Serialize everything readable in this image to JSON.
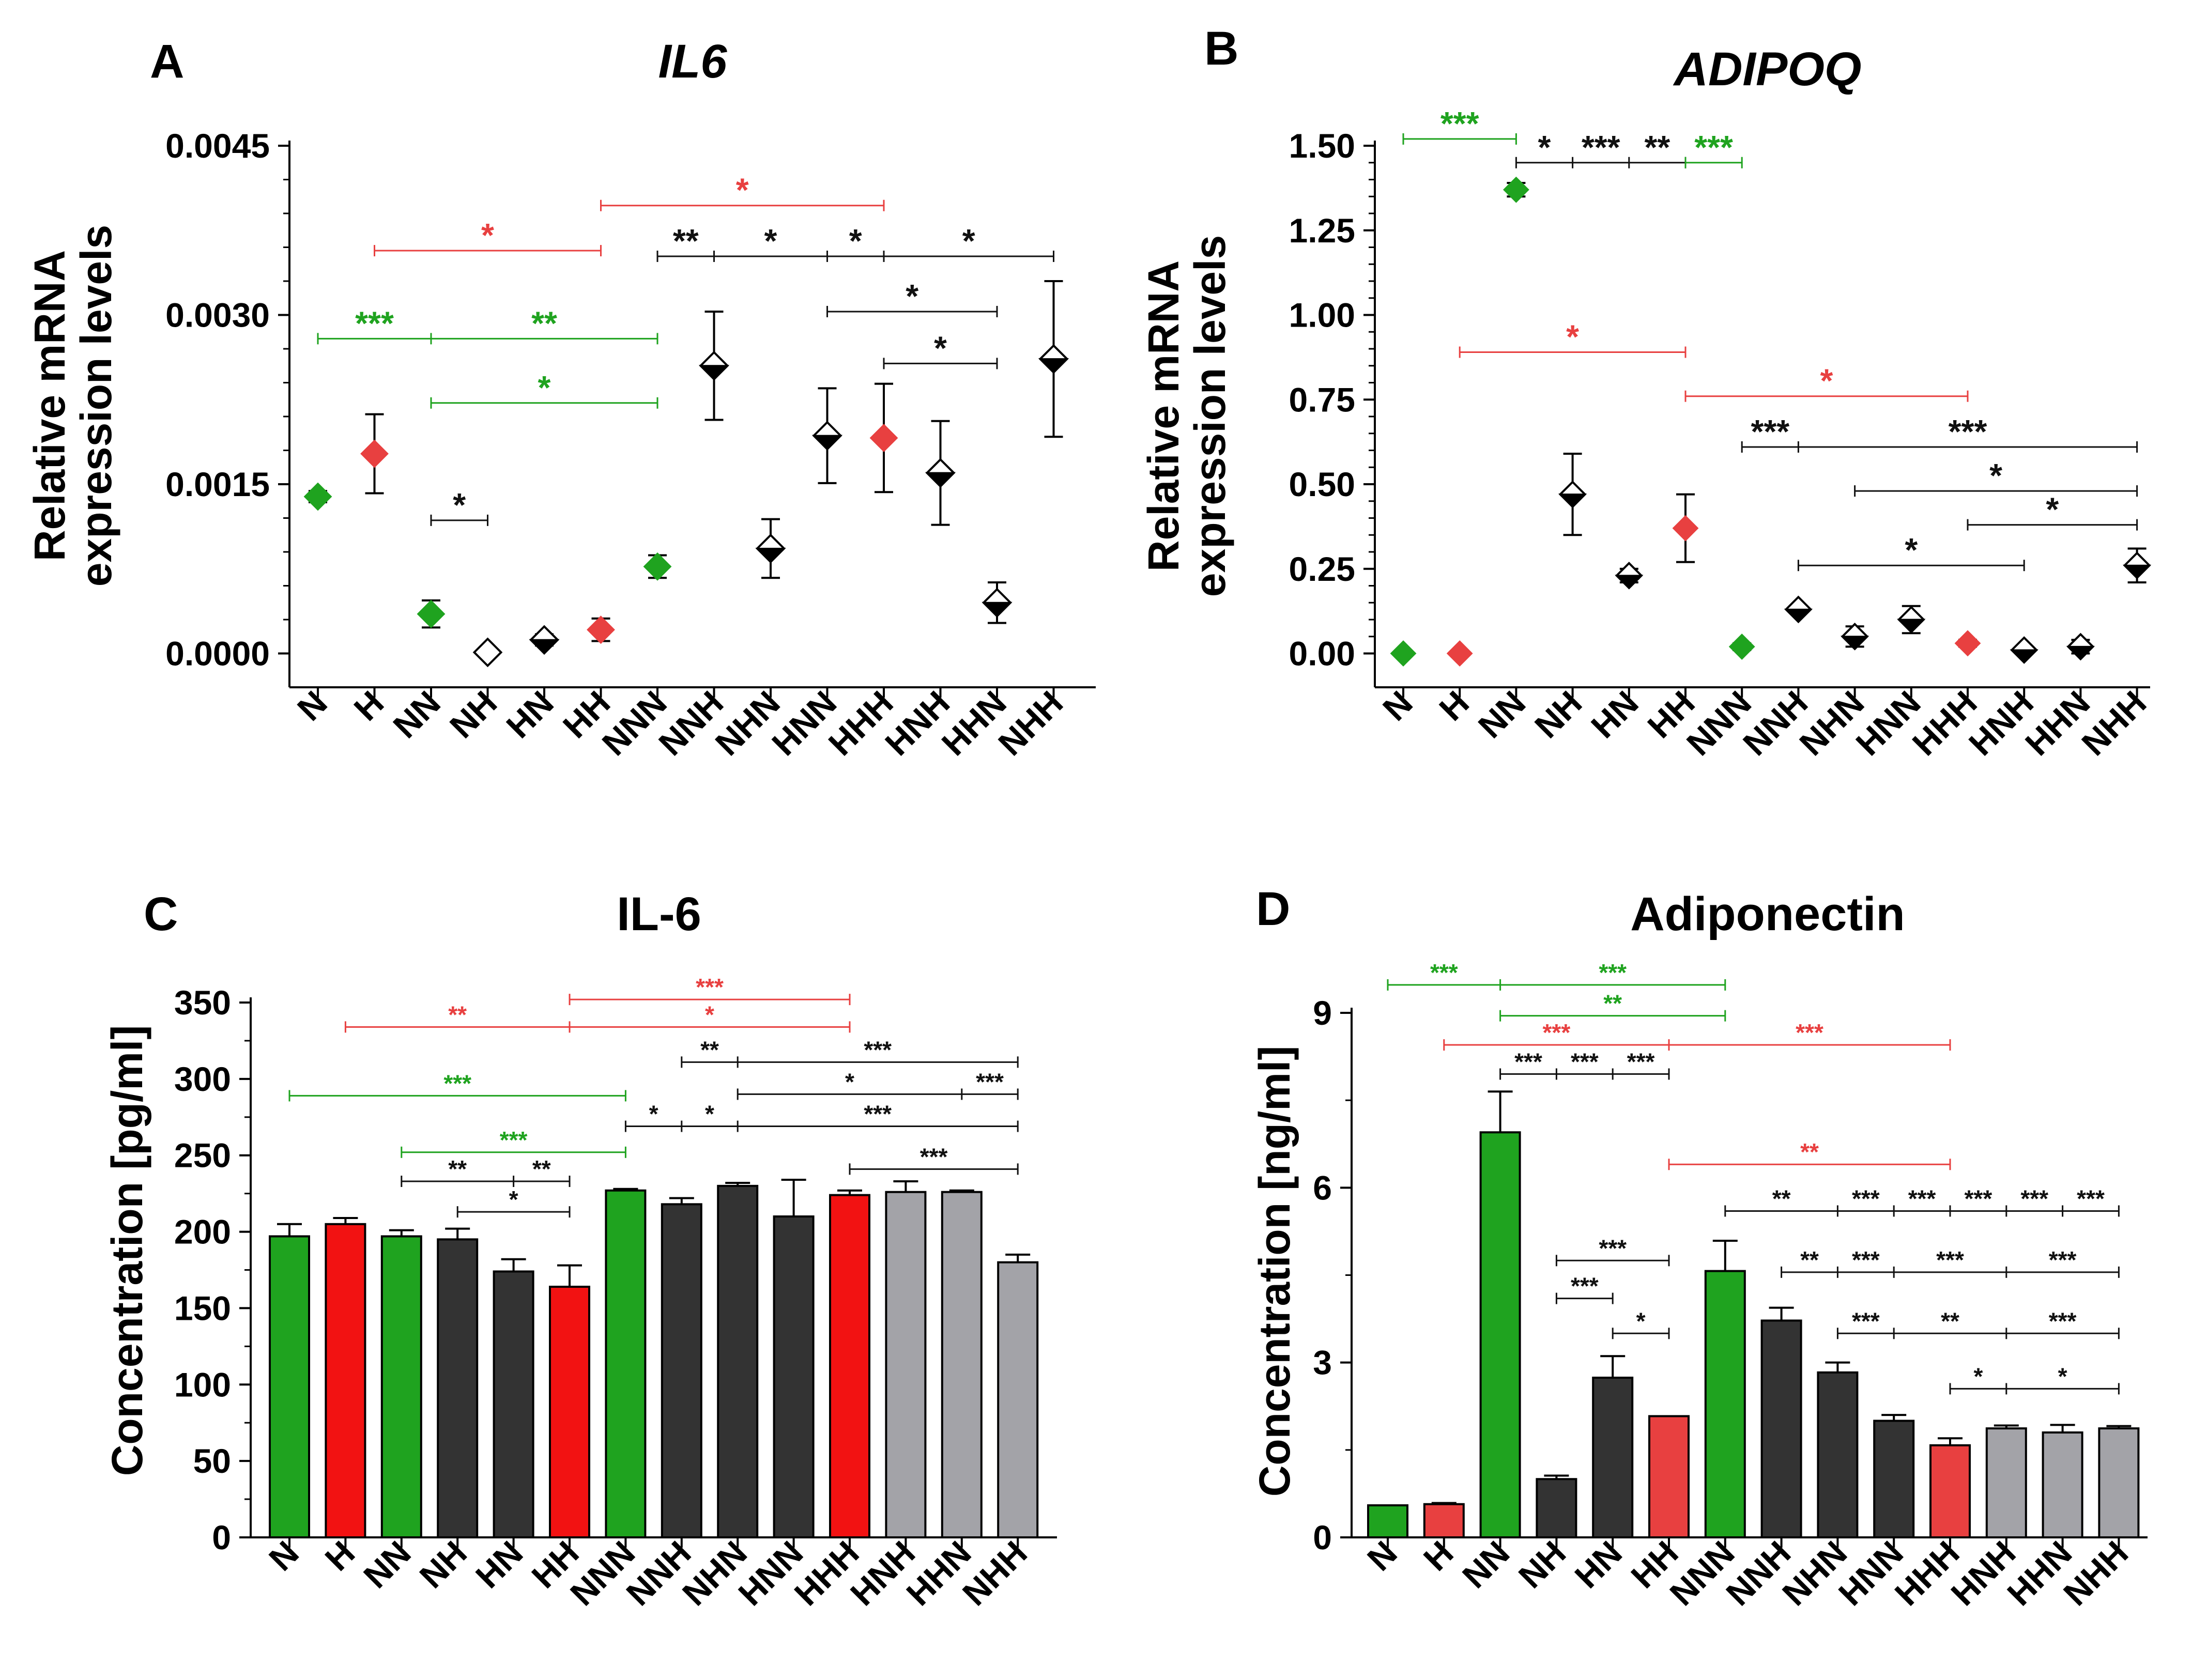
{
  "figure": {
    "colors": {
      "green": "#1fa31f",
      "red": "#e84040",
      "barRed": "#f21212",
      "dark": "#333333",
      "gray": "#a3a3a8",
      "black": "#111111"
    }
  },
  "chart_data": [
    {
      "panel": "A",
      "type": "scatter",
      "title": "IL6",
      "title_italic": true,
      "ylabel": [
        "Relative mRNA",
        "expression levels"
      ],
      "ylim": [
        -0.0003,
        0.0045
      ],
      "yticks": [
        0.0,
        0.0015,
        0.003,
        0.0045
      ],
      "ytick_labels": [
        "0.0000",
        "0.0015",
        "0.0030",
        "0.0045"
      ],
      "categories": [
        "N",
        "H",
        "NN",
        "NH",
        "HN",
        "HH",
        "NNN",
        "NNH",
        "NHN",
        "HNN",
        "HHH",
        "HNH",
        "HHN",
        "NHH"
      ],
      "values": [
        0.00139,
        0.00177,
        0.00035,
        1e-05,
        0.00012,
        0.00021,
        0.00077,
        0.00255,
        0.00093,
        0.00193,
        0.00191,
        0.0016,
        0.00045,
        0.00261
      ],
      "errors": [
        5e-05,
        0.00035,
        0.00012,
        2e-05,
        5e-05,
        0.0001,
        0.0001,
        0.00048,
        0.00026,
        0.00042,
        0.00048,
        0.00046,
        0.00018,
        0.00069
      ],
      "colors": [
        "green",
        "red",
        "green",
        "black",
        "black",
        "red",
        "green",
        "black",
        "black",
        "black",
        "red",
        "black",
        "black",
        "black"
      ],
      "styles": [
        "solid",
        "solid",
        "solid",
        "hollow",
        "half",
        "solid",
        "solid",
        "half",
        "half",
        "half",
        "solid",
        "half",
        "half",
        "half"
      ],
      "significance": [
        {
          "text": "***",
          "color": "green",
          "y": 0.00279,
          "from": 0,
          "to": 2,
          "ticks": [
            0,
            2,
            6
          ]
        },
        {
          "text": "**",
          "color": "green",
          "y": 0.00279,
          "from": 2,
          "to": 6
        },
        {
          "text": "*",
          "color": "green",
          "y": 0.00222,
          "from": 2,
          "to": 6,
          "ticks": [
            2,
            6
          ]
        },
        {
          "text": "*",
          "color": "red",
          "y": 0.00357,
          "from": 1,
          "to": 5,
          "ticks": [
            1,
            5
          ]
        },
        {
          "text": "*",
          "color": "red",
          "y": 0.00397,
          "from": 5,
          "to": 10,
          "ticks": [
            5,
            10
          ]
        },
        {
          "text": "*",
          "color": "black",
          "y": 0.00118,
          "from": 2,
          "to": 3,
          "ticks": [
            2,
            3
          ]
        },
        {
          "text": "**",
          "color": "black",
          "y": 0.00352,
          "from": 6,
          "to": 7,
          "ticks": [
            6,
            7,
            9,
            10,
            13
          ]
        },
        {
          "text": "*",
          "color": "black",
          "y": 0.00352,
          "from": 7,
          "to": 9
        },
        {
          "text": "*",
          "color": "black",
          "y": 0.00352,
          "from": 9,
          "to": 10
        },
        {
          "text": "*",
          "color": "black",
          "y": 0.00352,
          "from": 10,
          "to": 13
        },
        {
          "text": "*",
          "color": "black",
          "y": 0.00303,
          "from": 9,
          "to": 12,
          "ticks": [
            9,
            12
          ]
        },
        {
          "text": "*",
          "color": "black",
          "y": 0.00257,
          "from": 10,
          "to": 12,
          "ticks": [
            10,
            12
          ]
        }
      ]
    },
    {
      "panel": "B",
      "type": "scatter",
      "title": "ADIPOQ",
      "title_italic": true,
      "ylabel": [
        "Relative mRNA",
        "expression levels"
      ],
      "ylim": [
        -0.1,
        1.5
      ],
      "yticks": [
        0.0,
        0.25,
        0.5,
        0.75,
        1.0,
        1.25,
        1.5
      ],
      "ytick_labels": [
        "0.00",
        "0.25",
        "0.50",
        "0.75",
        "1.00",
        "1.25",
        "1.50"
      ],
      "categories": [
        "N",
        "H",
        "NN",
        "NH",
        "HN",
        "HH",
        "NNN",
        "NNH",
        "NHN",
        "HNN",
        "HHH",
        "HNH",
        "HHN",
        "NHH"
      ],
      "values": [
        0.0,
        0.0,
        1.37,
        0.47,
        0.23,
        0.37,
        0.02,
        0.13,
        0.05,
        0.1,
        0.03,
        0.01,
        0.02,
        0.26
      ],
      "errors": [
        0.0,
        0.0,
        0.02,
        0.12,
        0.02,
        0.1,
        0.01,
        0.01,
        0.03,
        0.04,
        0.01,
        0.0,
        0.02,
        0.05
      ],
      "colors": [
        "green",
        "red",
        "green",
        "black",
        "black",
        "red",
        "green",
        "black",
        "black",
        "black",
        "red",
        "black",
        "black",
        "black"
      ],
      "styles": [
        "solid",
        "solid",
        "solid",
        "half",
        "half",
        "solid",
        "solid",
        "half",
        "half",
        "half",
        "solid",
        "half",
        "half",
        "half"
      ],
      "significance": [
        {
          "text": "***",
          "color": "green",
          "y": 1.52,
          "from": 0,
          "to": 2,
          "ticks": [
            0,
            2
          ]
        },
        {
          "text": "*",
          "color": "black",
          "y": 1.45,
          "from": 2,
          "to": 3,
          "ticks": [
            2,
            3,
            4,
            5
          ]
        },
        {
          "text": "***",
          "color": "black",
          "y": 1.45,
          "from": 3,
          "to": 4
        },
        {
          "text": "**",
          "color": "black",
          "y": 1.45,
          "from": 4,
          "to": 5
        },
        {
          "text": "***",
          "color": "green",
          "y": 1.45,
          "from": 5,
          "to": 6,
          "ticks": [
            5,
            6
          ]
        },
        {
          "text": "*",
          "color": "red",
          "y": 0.89,
          "from": 1,
          "to": 5,
          "ticks": [
            1,
            5
          ]
        },
        {
          "text": "*",
          "color": "red",
          "y": 0.76,
          "from": 5,
          "to": 10,
          "ticks": [
            5,
            10
          ]
        },
        {
          "text": "***",
          "color": "black",
          "y": 0.61,
          "from": 6,
          "to": 7,
          "ticks": [
            6,
            7,
            13
          ]
        },
        {
          "text": "***",
          "color": "black",
          "y": 0.61,
          "from": 7,
          "to": 13
        },
        {
          "text": "*",
          "color": "black",
          "y": 0.48,
          "from": 8,
          "to": 13,
          "ticks": [
            8,
            13
          ]
        },
        {
          "text": "*",
          "color": "black",
          "y": 0.38,
          "from": 10,
          "to": 13,
          "ticks": [
            10,
            13
          ]
        },
        {
          "text": "*",
          "color": "black",
          "y": 0.26,
          "from": 7,
          "to": 11,
          "ticks": [
            7,
            11
          ]
        }
      ]
    },
    {
      "panel": "C",
      "type": "bar",
      "title": "IL-6",
      "title_italic": false,
      "ylabel": [
        "Concentration [pg/ml]"
      ],
      "ylim": [
        0,
        350
      ],
      "yticks": [
        0,
        50,
        100,
        150,
        200,
        250,
        300,
        350
      ],
      "ytick_labels": [
        "0",
        "50",
        "100",
        "150",
        "200",
        "250",
        "300",
        "350"
      ],
      "categories": [
        "N",
        "H",
        "NN",
        "NH",
        "HN",
        "HH",
        "NNN",
        "NNH",
        "NHN",
        "HNN",
        "HHH",
        "HNH",
        "HHN",
        "NHH"
      ],
      "values": [
        197,
        205,
        197,
        195,
        174,
        164,
        227,
        218,
        230,
        210,
        224,
        226,
        226,
        180
      ],
      "errors": [
        8,
        4,
        4,
        7,
        8,
        14,
        1,
        4,
        2,
        24,
        3,
        7,
        1,
        5
      ],
      "colors": [
        "green",
        "barRed",
        "green",
        "dark",
        "dark",
        "barRed",
        "green",
        "dark",
        "dark",
        "dark",
        "barRed",
        "gray",
        "gray",
        "gray"
      ],
      "significance": [
        {
          "text": "***",
          "color": "red",
          "y": 352,
          "from": 5,
          "to": 10,
          "ticks": [
            5,
            10
          ]
        },
        {
          "text": "**",
          "color": "red",
          "y": 334,
          "from": 1,
          "to": 5,
          "ticks": [
            1,
            5,
            10
          ]
        },
        {
          "text": "*",
          "color": "red",
          "y": 334,
          "from": 5,
          "to": 10
        },
        {
          "text": "**",
          "color": "black",
          "y": 311,
          "from": 7,
          "to": 8,
          "ticks": [
            7,
            8,
            13
          ]
        },
        {
          "text": "***",
          "color": "black",
          "y": 311,
          "from": 8,
          "to": 13
        },
        {
          "text": "***",
          "color": "green",
          "y": 289,
          "from": 0,
          "to": 6,
          "ticks": [
            0,
            6
          ]
        },
        {
          "text": "*",
          "color": "black",
          "y": 290,
          "from": 8,
          "to": 12,
          "ticks": [
            8,
            12,
            13
          ]
        },
        {
          "text": "***",
          "color": "black",
          "y": 290,
          "from": 12,
          "to": 13
        },
        {
          "text": "*",
          "color": "black",
          "y": 269,
          "from": 6,
          "to": 7,
          "ticks": [
            6,
            7,
            8,
            13
          ]
        },
        {
          "text": "*",
          "color": "black",
          "y": 269,
          "from": 7,
          "to": 8
        },
        {
          "text": "***",
          "color": "black",
          "y": 269,
          "from": 8,
          "to": 13
        },
        {
          "text": "***",
          "color": "green",
          "y": 252,
          "from": 2,
          "to": 6,
          "ticks": [
            2,
            6
          ]
        },
        {
          "text": "***",
          "color": "black",
          "y": 241,
          "from": 10,
          "to": 13,
          "ticks": [
            10,
            13
          ]
        },
        {
          "text": "**",
          "color": "black",
          "y": 233,
          "from": 2,
          "to": 4,
          "ticks": [
            2,
            4,
            5
          ]
        },
        {
          "text": "**",
          "color": "black",
          "y": 233,
          "from": 4,
          "to": 5
        },
        {
          "text": "*",
          "color": "black",
          "y": 213,
          "from": 3,
          "to": 5,
          "ticks": [
            3,
            5
          ]
        }
      ]
    },
    {
      "panel": "D",
      "type": "bar",
      "title": "Adiponectin",
      "title_italic": false,
      "ylabel": [
        "Concentration [ng/ml]"
      ],
      "ylim": [
        0,
        9
      ],
      "yticks": [
        0,
        3,
        6,
        9
      ],
      "ytick_labels": [
        "0",
        "3",
        "6",
        "9"
      ],
      "categories": [
        "N",
        "H",
        "NN",
        "NH",
        "HN",
        "HH",
        "NNN",
        "NNH",
        "NHN",
        "HNN",
        "HHH",
        "HNH",
        "HHN",
        "NHH"
      ],
      "values": [
        0.55,
        0.57,
        6.95,
        1.0,
        2.74,
        2.08,
        4.57,
        3.72,
        2.83,
        2.0,
        1.58,
        1.87,
        1.8,
        1.87
      ],
      "errors": [
        0.0,
        0.02,
        0.7,
        0.06,
        0.37,
        0.0,
        0.52,
        0.22,
        0.17,
        0.1,
        0.12,
        0.05,
        0.13,
        0.04
      ],
      "colors": [
        "green",
        "red",
        "green",
        "dark",
        "dark",
        "red",
        "green",
        "dark",
        "dark",
        "dark",
        "red",
        "gray",
        "gray",
        "gray"
      ],
      "significance": [
        {
          "text": "***",
          "color": "green",
          "y": 9.48,
          "from": 0,
          "to": 2,
          "ticks": [
            0,
            2,
            6
          ]
        },
        {
          "text": "***",
          "color": "green",
          "y": 9.48,
          "from": 2,
          "to": 6
        },
        {
          "text": "**",
          "color": "green",
          "y": 8.95,
          "from": 2,
          "to": 6,
          "ticks": [
            2,
            6
          ]
        },
        {
          "text": "***",
          "color": "red",
          "y": 8.45,
          "from": 1,
          "to": 5,
          "ticks": [
            1,
            5,
            10
          ]
        },
        {
          "text": "***",
          "color": "red",
          "y": 8.45,
          "from": 5,
          "to": 10
        },
        {
          "text": "***",
          "color": "black",
          "y": 7.95,
          "from": 2,
          "to": 3,
          "ticks": [
            2,
            3,
            4,
            5
          ]
        },
        {
          "text": "***",
          "color": "black",
          "y": 7.95,
          "from": 3,
          "to": 4
        },
        {
          "text": "***",
          "color": "black",
          "y": 7.95,
          "from": 4,
          "to": 5
        },
        {
          "text": "**",
          "color": "red",
          "y": 6.4,
          "from": 5,
          "to": 10,
          "ticks": [
            5,
            10
          ]
        },
        {
          "text": "**",
          "color": "black",
          "y": 5.6,
          "from": 6,
          "to": 8,
          "ticks": [
            6,
            8,
            9,
            10,
            11,
            12,
            13
          ]
        },
        {
          "text": "***",
          "color": "black",
          "y": 5.6,
          "from": 8,
          "to": 9
        },
        {
          "text": "***",
          "color": "black",
          "y": 5.6,
          "from": 9,
          "to": 10
        },
        {
          "text": "***",
          "color": "black",
          "y": 5.6,
          "from": 10,
          "to": 11
        },
        {
          "text": "***",
          "color": "black",
          "y": 5.6,
          "from": 11,
          "to": 12
        },
        {
          "text": "***",
          "color": "black",
          "y": 5.6,
          "from": 12,
          "to": 13
        },
        {
          "text": "***",
          "color": "black",
          "y": 4.75,
          "from": 3,
          "to": 5,
          "ticks": [
            3,
            5
          ]
        },
        {
          "text": "**",
          "color": "black",
          "y": 4.55,
          "from": 7,
          "to": 8,
          "ticks": [
            7,
            8,
            9,
            11,
            13
          ]
        },
        {
          "text": "***",
          "color": "black",
          "y": 4.55,
          "from": 8,
          "to": 9
        },
        {
          "text": "***",
          "color": "black",
          "y": 4.55,
          "from": 9,
          "to": 11
        },
        {
          "text": "***",
          "color": "black",
          "y": 4.55,
          "from": 11,
          "to": 13
        },
        {
          "text": "***",
          "color": "black",
          "y": 4.1,
          "from": 3,
          "to": 4,
          "ticks": [
            3,
            4
          ]
        },
        {
          "text": "***",
          "color": "black",
          "y": 3.5,
          "from": 8,
          "to": 9,
          "ticks": [
            8,
            9,
            11,
            13
          ]
        },
        {
          "text": "**",
          "color": "black",
          "y": 3.5,
          "from": 9,
          "to": 11
        },
        {
          "text": "***",
          "color": "black",
          "y": 3.5,
          "from": 11,
          "to": 13
        },
        {
          "text": "*",
          "color": "black",
          "y": 3.5,
          "from": 4,
          "to": 5,
          "ticks": [
            4,
            5
          ]
        },
        {
          "text": "*",
          "color": "black",
          "y": 2.55,
          "from": 10,
          "to": 11,
          "ticks": [
            10,
            11,
            13
          ]
        },
        {
          "text": "*",
          "color": "black",
          "y": 2.55,
          "from": 11,
          "to": 13
        }
      ]
    }
  ]
}
